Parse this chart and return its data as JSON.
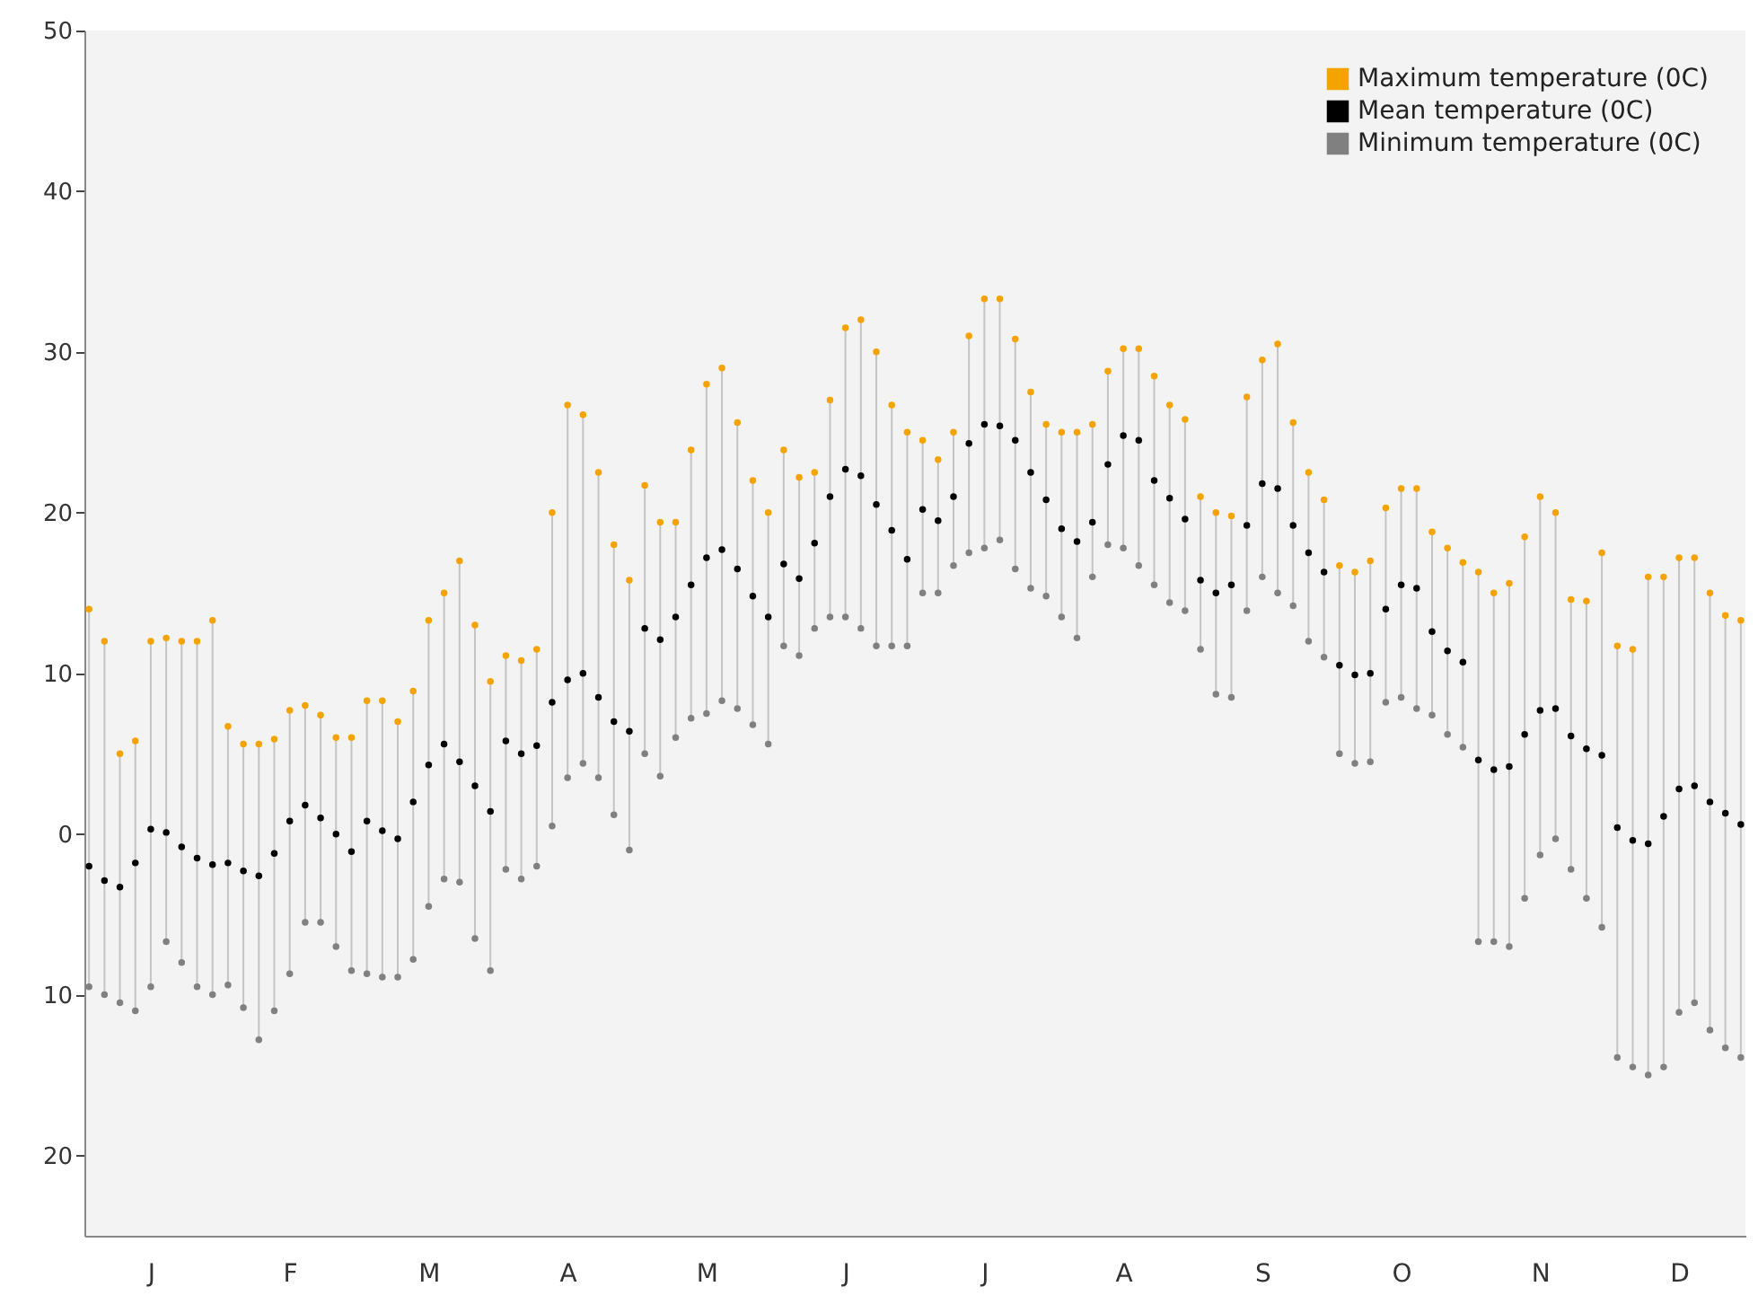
{
  "chart_data": {
    "type": "scatter",
    "categories": [
      null,
      null,
      null,
      null,
      "J",
      null,
      null,
      null,
      null,
      null,
      null,
      null,
      null,
      "F",
      null,
      null,
      null,
      null,
      null,
      null,
      null,
      null,
      "M",
      null,
      null,
      null,
      null,
      null,
      null,
      null,
      null,
      "A",
      null,
      null,
      null,
      null,
      null,
      null,
      null,
      null,
      "M",
      null,
      null,
      null,
      null,
      null,
      null,
      null,
      null,
      "J",
      null,
      null,
      null,
      null,
      null,
      null,
      null,
      null,
      "J",
      null,
      null,
      null,
      null,
      null,
      null,
      null,
      null,
      "A",
      null,
      null,
      null,
      null,
      null,
      null,
      null,
      null,
      "S",
      null,
      null,
      null,
      null,
      null,
      null,
      null,
      null,
      "O",
      null,
      null,
      null,
      null,
      null,
      null,
      null,
      null,
      "N",
      null,
      null,
      null,
      null,
      null,
      null,
      null,
      null,
      "D",
      null,
      null,
      null,
      null
    ],
    "series": [
      {
        "name": "Maximum temperature (0C)",
        "color": "#f5a300",
        "values": [
          14,
          12,
          5,
          5.8,
          12,
          12.2,
          12,
          12,
          13.3,
          6.7,
          5.6,
          5.6,
          5.9,
          7.7,
          8,
          7.4,
          6,
          6,
          8.3,
          8.3,
          7,
          8.9,
          13.3,
          15,
          17,
          13,
          9.5,
          11.1,
          10.8,
          11.5,
          20,
          26.7,
          26.1,
          22.5,
          18,
          15.8,
          21.7,
          19.4,
          19.4,
          23.9,
          28,
          29,
          25.6,
          22,
          20,
          23.9,
          22.2,
          22.5,
          27,
          31.5,
          32,
          30,
          26.7,
          25,
          24.5,
          23.3,
          25,
          31,
          33.3,
          33.3,
          30.8,
          27.5,
          25.5,
          25,
          25,
          25.5,
          28.8,
          30.2,
          30.2,
          28.5,
          26.7,
          25.8,
          21,
          20,
          19.8,
          27.2,
          29.5,
          30.5,
          25.6,
          22.5,
          20.8,
          16.7,
          16.3,
          17,
          20.3,
          21.5,
          21.5,
          18.8,
          17.8,
          16.9,
          16.3,
          15,
          15.6,
          18.5,
          21,
          20,
          14.6,
          14.5,
          17.5,
          11.7,
          11.5,
          16,
          16,
          17.2,
          17.2,
          15,
          13.6,
          13.3
        ]
      },
      {
        "name": "Mean temperature (0C)",
        "color": "#000000",
        "values": [
          -2,
          -2.9,
          -3.3,
          -1.8,
          0.3,
          0.1,
          -0.8,
          -1.5,
          -1.9,
          -1.8,
          -2.3,
          -2.6,
          -1.2,
          0.8,
          1.8,
          1,
          0,
          -1.1,
          0.8,
          0.2,
          -0.3,
          2,
          4.3,
          5.6,
          4.5,
          3,
          1.4,
          5.8,
          5,
          5.5,
          8.2,
          9.6,
          10,
          8.5,
          7,
          6.4,
          12.8,
          12.1,
          13.5,
          15.5,
          17.2,
          17.7,
          16.5,
          14.8,
          13.5,
          16.8,
          15.9,
          18.1,
          21,
          22.7,
          22.3,
          20.5,
          18.9,
          17.1,
          20.2,
          19.5,
          21,
          24.3,
          25.5,
          25.4,
          24.5,
          22.5,
          20.8,
          19,
          18.2,
          19.4,
          23,
          24.8,
          24.5,
          22,
          20.9,
          19.6,
          15.8,
          15,
          15.5,
          19.2,
          21.8,
          21.5,
          19.2,
          17.5,
          16.3,
          10.5,
          9.9,
          10,
          14,
          15.5,
          15.3,
          12.6,
          11.4,
          10.7,
          4.6,
          4,
          4.2,
          6.2,
          7.7,
          7.8,
          6.1,
          5.3,
          4.9,
          0.4,
          -0.4,
          -0.6,
          1.1,
          2.8,
          3,
          2,
          1.3,
          0.6
        ]
      },
      {
        "name": "Minimum temperature (0C)",
        "color": "#808080",
        "values": [
          -9.5,
          -10,
          -10.5,
          -11,
          -9.5,
          -6.7,
          -8,
          -9.5,
          -10,
          -9.4,
          -10.8,
          -12.8,
          -11,
          -8.7,
          -5.5,
          -5.5,
          -7,
          -8.5,
          -8.7,
          -8.9,
          -8.9,
          -7.8,
          -4.5,
          -2.8,
          -3,
          -6.5,
          -8.5,
          -2.2,
          -2.8,
          -2,
          0.5,
          3.5,
          4.4,
          3.5,
          1.2,
          -1,
          5,
          3.6,
          6,
          7.2,
          7.5,
          8.3,
          7.8,
          6.8,
          5.6,
          11.7,
          11.1,
          12.8,
          13.5,
          13.5,
          12.8,
          11.7,
          11.7,
          11.7,
          15,
          15,
          16.7,
          17.5,
          17.8,
          18.3,
          16.5,
          15.3,
          14.8,
          13.5,
          12.2,
          16,
          18,
          17.8,
          16.7,
          15.5,
          14.4,
          13.9,
          11.5,
          8.7,
          8.5,
          13.9,
          16,
          15,
          14.2,
          12,
          11,
          5,
          4.4,
          4.5,
          8.2,
          8.5,
          7.8,
          7.4,
          6.2,
          5.4,
          -6.7,
          -6.7,
          -7,
          -4,
          -1.3,
          -0.3,
          -2.2,
          -4,
          -5.8,
          -13.9,
          -14.5,
          -15,
          -14.5,
          -11.1,
          -10.5,
          -12.2,
          -13.3,
          -13.9
        ]
      }
    ],
    "ylim": [
      -25,
      50
    ],
    "yticks": [
      50,
      40,
      30,
      20,
      10,
      0,
      {
        "value": -10,
        "label": "10"
      },
      {
        "value": -20,
        "label": "20"
      }
    ],
    "marker": "circle",
    "grid": false,
    "legend": "top right"
  }
}
